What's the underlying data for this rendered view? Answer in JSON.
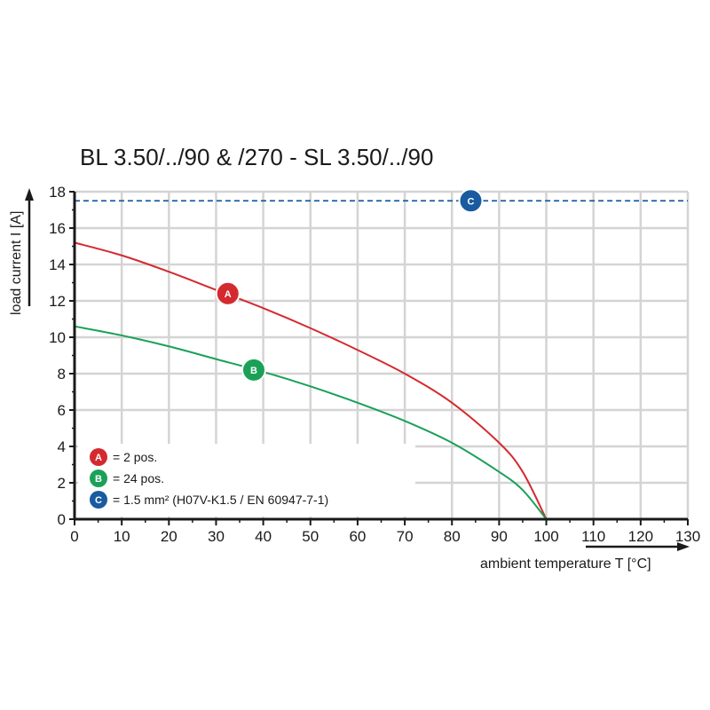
{
  "chart_data": {
    "type": "line",
    "title": "BL 3.50/../90 & /270 - SL 3.50/../90",
    "xlabel": "ambient temperature T [°C]",
    "ylabel": "load current I [A]",
    "xlim": [
      0,
      130
    ],
    "ylim": [
      0,
      18
    ],
    "xticks": [
      0,
      10,
      20,
      30,
      40,
      50,
      60,
      70,
      80,
      90,
      100,
      110,
      120,
      130
    ],
    "yticks": [
      0,
      2,
      4,
      6,
      8,
      10,
      12,
      14,
      16,
      18
    ],
    "grid": true,
    "legend_position": "bottom-left",
    "series": [
      {
        "name": "A",
        "legend": "= 2 pos.",
        "color": "#d42a2f",
        "x": [
          0,
          10,
          20,
          30,
          40,
          50,
          60,
          70,
          80,
          90,
          95,
          100
        ],
        "y": [
          15.2,
          14.5,
          13.6,
          12.6,
          11.6,
          10.5,
          9.3,
          8.0,
          6.4,
          4.2,
          2.6,
          0
        ]
      },
      {
        "name": "B",
        "legend": "= 24 pos.",
        "color": "#1aa157",
        "x": [
          0,
          10,
          20,
          30,
          40,
          50,
          60,
          70,
          80,
          90,
          95,
          100
        ],
        "y": [
          10.6,
          10.1,
          9.5,
          8.8,
          8.1,
          7.3,
          6.4,
          5.4,
          4.2,
          2.6,
          1.6,
          0
        ]
      },
      {
        "name": "C",
        "legend": "= 1.5 mm² (H07V-K1.5 / EN 60947-7-1)",
        "color": "#1a5aa0",
        "style": "dashed",
        "x": [
          0,
          130
        ],
        "y": [
          17.5,
          17.5
        ]
      }
    ],
    "markers": [
      {
        "label": "A",
        "x": 32.5,
        "y": 12.4
      },
      {
        "label": "B",
        "x": 38,
        "y": 8.2
      },
      {
        "label": "C",
        "x": 84,
        "y": 17.5
      }
    ]
  }
}
